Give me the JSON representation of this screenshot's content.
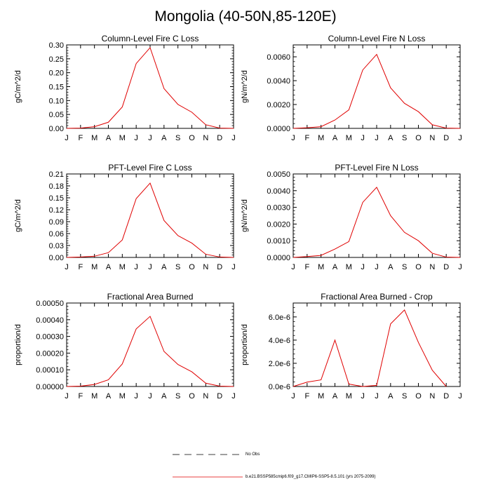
{
  "title": "Mongolia (40-50N,85-120E)",
  "legend": {
    "entries": [
      {
        "label": "No Obs",
        "color": "#000000",
        "style": "dashed"
      },
      {
        "label": "b.e21.BSSP585cmip6.f09_g17.CMIP6-SSP5-8.5.101 (yrs 2075-2099)",
        "color": "#e00000",
        "style": "solid"
      }
    ]
  },
  "chart_data": [
    {
      "type": "line",
      "title": "Column-Level Fire C Loss",
      "ylabel": "gC/m^2/d",
      "categories": [
        "J",
        "F",
        "M",
        "A",
        "M",
        "J",
        "J",
        "A",
        "S",
        "O",
        "N",
        "D",
        "J"
      ],
      "ylim": [
        0,
        0.3
      ],
      "yticks": [
        0,
        0.05,
        0.1,
        0.15,
        0.2,
        0.25,
        0.3
      ],
      "ytick_labels": [
        "0.00",
        "0.05",
        "0.10",
        "0.15",
        "0.20",
        "0.25",
        "0.30"
      ],
      "series": [
        {
          "color": "#e00000",
          "values": [
            0.0,
            0.001,
            0.006,
            0.022,
            0.077,
            0.233,
            0.29,
            0.143,
            0.086,
            0.058,
            0.013,
            0.001,
            0.0
          ]
        }
      ]
    },
    {
      "type": "line",
      "title": "Column-Level Fire N Loss",
      "ylabel": "gN/m^2/d",
      "categories": [
        "J",
        "F",
        "M",
        "A",
        "M",
        "J",
        "J",
        "A",
        "S",
        "O",
        "N",
        "D",
        "J"
      ],
      "ylim": [
        0,
        0.007
      ],
      "yticks": [
        0,
        0.002,
        0.004,
        0.006
      ],
      "ytick_labels": [
        "0.0000",
        "0.0020",
        "0.0040",
        "0.0060"
      ],
      "series": [
        {
          "color": "#e00000",
          "values": [
            0.0,
            5e-05,
            0.00014,
            0.0007,
            0.00155,
            0.0049,
            0.0062,
            0.0034,
            0.0021,
            0.0014,
            0.0003,
            2e-05,
            0.0
          ]
        }
      ]
    },
    {
      "type": "line",
      "title": "PFT-Level Fire C Loss",
      "ylabel": "gC/m^2/d",
      "categories": [
        "J",
        "F",
        "M",
        "A",
        "M",
        "J",
        "J",
        "A",
        "S",
        "O",
        "N",
        "D",
        "J"
      ],
      "ylim": [
        0,
        0.21
      ],
      "yticks": [
        0,
        0.03,
        0.06,
        0.09,
        0.12,
        0.15,
        0.18,
        0.21
      ],
      "ytick_labels": [
        "0.00",
        "0.03",
        "0.06",
        "0.09",
        "0.12",
        "0.15",
        "0.18",
        "0.21"
      ],
      "series": [
        {
          "color": "#e00000",
          "values": [
            0.0,
            0.001,
            0.003,
            0.012,
            0.044,
            0.148,
            0.187,
            0.093,
            0.055,
            0.036,
            0.008,
            0.001,
            0.0
          ]
        }
      ]
    },
    {
      "type": "line",
      "title": "PFT-Level Fire N Loss",
      "ylabel": "gN/m^2/d",
      "categories": [
        "J",
        "F",
        "M",
        "A",
        "M",
        "J",
        "J",
        "A",
        "S",
        "O",
        "N",
        "D",
        "J"
      ],
      "ylim": [
        0,
        0.005
      ],
      "yticks": [
        0,
        0.001,
        0.002,
        0.003,
        0.004,
        0.005
      ],
      "ytick_labels": [
        "0.0000",
        "0.0010",
        "0.0020",
        "0.0030",
        "0.0040",
        "0.0050"
      ],
      "series": [
        {
          "color": "#e00000",
          "values": [
            0.0,
            5e-05,
            0.00012,
            0.0005,
            0.00095,
            0.0033,
            0.0042,
            0.0025,
            0.0015,
            0.001,
            0.00025,
            2e-05,
            0.0
          ]
        }
      ]
    },
    {
      "type": "line",
      "title": "Fractional Area Burned",
      "ylabel": "proportion/d",
      "categories": [
        "J",
        "F",
        "M",
        "A",
        "M",
        "J",
        "J",
        "A",
        "S",
        "O",
        "N",
        "D",
        "J"
      ],
      "ylim": [
        0,
        0.0005
      ],
      "yticks": [
        0,
        0.0001,
        0.0002,
        0.0003,
        0.0004,
        0.0005
      ],
      "ytick_labels": [
        "0.00000",
        "0.00010",
        "0.00020",
        "0.00030",
        "0.00040",
        "0.00050"
      ],
      "series": [
        {
          "color": "#e00000",
          "values": [
            0.0,
            2e-06,
            1.2e-05,
            4e-05,
            0.000135,
            0.000345,
            0.00042,
            0.00021,
            0.000132,
            8.8e-05,
            2e-05,
            2e-06,
            0.0
          ]
        }
      ]
    },
    {
      "type": "line",
      "title": "Fractional Area Burned - Crop",
      "ylabel": "proportion/d",
      "categories": [
        "J",
        "F",
        "M",
        "A",
        "M",
        "J",
        "J",
        "A",
        "S",
        "O",
        "N",
        "D",
        "J"
      ],
      "ylim": [
        0,
        7.2e-06
      ],
      "yticks": [
        0,
        2e-06,
        4e-06,
        6e-06
      ],
      "ytick_labels": [
        "0.0e-6",
        "2.0e-6",
        "4.0e-6",
        "6.0e-6"
      ],
      "series": [
        {
          "color": "#e00000",
          "values": [
            0.0,
            3.8e-07,
            5.7e-07,
            4e-06,
            2.1e-07,
            0.0,
            1e-07,
            5.4e-06,
            6.6e-06,
            3.8e-06,
            1.4e-06,
            0.0,
            null
          ]
        }
      ]
    }
  ]
}
